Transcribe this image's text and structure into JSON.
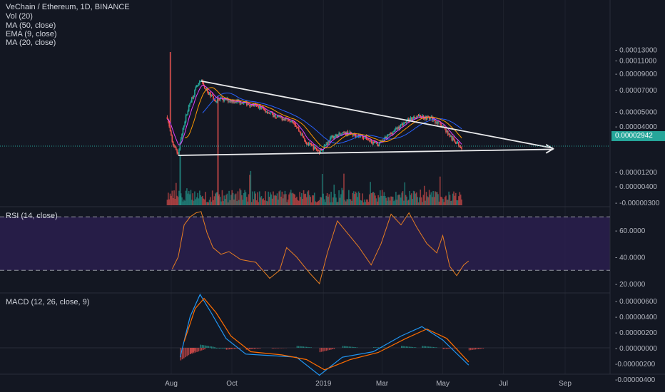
{
  "legend": {
    "title": "VeChain / Ethereum, 1D, BINANCE",
    "vol": "Vol (20)",
    "ma50": "MA (50, close)",
    "ema9": "EMA (9, close)",
    "ma20": "MA (20, close)",
    "rsi": "RSI (14, close)",
    "macd": "MACD (12, 26, close, 9)"
  },
  "colors": {
    "background": "#131722",
    "up": "#26a69a",
    "down": "#ef5350",
    "trendline": "#e9eaec",
    "ma50": "#2962ff",
    "ema9": "#e040fb",
    "ma20": "#ff9800",
    "rsi_line": "#e67e22",
    "rsi_band": "#2a1f4d",
    "macd_line": "#2196f3",
    "signal_line": "#ff6d00"
  },
  "last_price": "0.00002942",
  "chart_data": [
    {
      "type": "candlestick",
      "title": "VeChain / Ethereum, 1D, BINANCE",
      "x_ticks": [
        "Aug",
        "Oct",
        "2019",
        "Mar",
        "May",
        "Jul",
        "Sep"
      ],
      "y_ticks": [
        "0.00013000",
        "0.00011000",
        "0.00009000",
        "0.00007000",
        "0.00005000",
        "0.00004000",
        "0.00002942"
      ],
      "y_scale": "log",
      "last_price": 2.942e-05,
      "close_series_approx": [
        {
          "x": "2018-07-28",
          "y": 4.6e-05
        },
        {
          "x": "2018-08-02",
          "y": 3.1e-05
        },
        {
          "x": "2018-08-08",
          "y": 2.6e-05
        },
        {
          "x": "2018-08-14",
          "y": 4.2e-05
        },
        {
          "x": "2018-08-20",
          "y": 5.8e-05
        },
        {
          "x": "2018-08-26",
          "y": 7.2e-05
        },
        {
          "x": "2018-08-31",
          "y": 8e-05
        },
        {
          "x": "2018-09-06",
          "y": 6.8e-05
        },
        {
          "x": "2018-09-14",
          "y": 6e-05
        },
        {
          "x": "2018-09-25",
          "y": 6e-05
        },
        {
          "x": "2018-10-10",
          "y": 5.8e-05
        },
        {
          "x": "2018-10-28",
          "y": 5.4e-05
        },
        {
          "x": "2018-11-15",
          "y": 4.6e-05
        },
        {
          "x": "2018-12-01",
          "y": 4.4e-05
        },
        {
          "x": "2018-12-15",
          "y": 3.1e-05
        },
        {
          "x": "2018-12-28",
          "y": 2.7e-05
        },
        {
          "x": "2019-01-10",
          "y": 3.4e-05
        },
        {
          "x": "2019-01-25",
          "y": 3.6e-05
        },
        {
          "x": "2019-02-10",
          "y": 3.4e-05
        },
        {
          "x": "2019-02-25",
          "y": 3e-05
        },
        {
          "x": "2019-03-10",
          "y": 3.6e-05
        },
        {
          "x": "2019-03-25",
          "y": 4.3e-05
        },
        {
          "x": "2019-04-05",
          "y": 4.7e-05
        },
        {
          "x": "2019-04-20",
          "y": 4.5e-05
        },
        {
          "x": "2019-05-01",
          "y": 4e-05
        },
        {
          "x": "2019-05-10",
          "y": 3.3e-05
        },
        {
          "x": "2019-05-20",
          "y": 2.9e-05
        }
      ],
      "spike_high": {
        "x": "2018-07-31",
        "y": 0.000125
      },
      "trendlines": [
        {
          "from": {
            "x": "2018-08-31",
            "y": 8e-05
          },
          "to": {
            "x": "2019-08-20",
            "y": 2.85e-05
          }
        },
        {
          "from": {
            "x": "2018-08-08",
            "y": 2.55e-05
          },
          "to": {
            "x": "2019-08-20",
            "y": 2.8e-05
          }
        }
      ],
      "series": [
        {
          "name": "MA (50, close)"
        },
        {
          "name": "EMA (9, close)"
        },
        {
          "name": "MA (20, close)"
        }
      ]
    },
    {
      "type": "bar",
      "title": "Vol (20)",
      "y_ticks": [
        "0.00001200",
        "0.00000400",
        "-0.00000300"
      ],
      "peak_bar": {
        "x": "2018-08-10",
        "value": 1.55e-05
      }
    },
    {
      "type": "line",
      "title": "RSI (14, close)",
      "y_ticks": [
        "60.0000",
        "40.0000",
        "20.0000"
      ],
      "bands": [
        70,
        30
      ],
      "points": [
        {
          "x": "2018-08-02",
          "y": 31
        },
        {
          "x": "2018-08-08",
          "y": 40
        },
        {
          "x": "2018-08-14",
          "y": 64
        },
        {
          "x": "2018-08-20",
          "y": 70
        },
        {
          "x": "2018-08-26",
          "y": 73
        },
        {
          "x": "2018-08-31",
          "y": 74
        },
        {
          "x": "2018-09-06",
          "y": 58
        },
        {
          "x": "2018-09-12",
          "y": 47
        },
        {
          "x": "2018-09-20",
          "y": 42
        },
        {
          "x": "2018-09-28",
          "y": 44
        },
        {
          "x": "2018-10-10",
          "y": 38
        },
        {
          "x": "2018-10-25",
          "y": 36
        },
        {
          "x": "2018-11-08",
          "y": 24
        },
        {
          "x": "2018-11-18",
          "y": 30
        },
        {
          "x": "2018-11-25",
          "y": 47
        },
        {
          "x": "2018-12-05",
          "y": 40
        },
        {
          "x": "2018-12-18",
          "y": 28
        },
        {
          "x": "2018-12-28",
          "y": 20
        },
        {
          "x": "2019-01-05",
          "y": 43
        },
        {
          "x": "2019-01-15",
          "y": 67
        },
        {
          "x": "2019-01-25",
          "y": 58
        },
        {
          "x": "2019-02-05",
          "y": 48
        },
        {
          "x": "2019-02-18",
          "y": 34
        },
        {
          "x": "2019-02-28",
          "y": 50
        },
        {
          "x": "2019-03-10",
          "y": 72
        },
        {
          "x": "2019-03-20",
          "y": 64
        },
        {
          "x": "2019-03-28",
          "y": 73
        },
        {
          "x": "2019-04-05",
          "y": 62
        },
        {
          "x": "2019-04-15",
          "y": 50
        },
        {
          "x": "2019-04-25",
          "y": 43
        },
        {
          "x": "2019-05-01",
          "y": 56
        },
        {
          "x": "2019-05-08",
          "y": 33
        },
        {
          "x": "2019-05-15",
          "y": 26
        },
        {
          "x": "2019-05-22",
          "y": 34
        },
        {
          "x": "2019-05-27",
          "y": 37
        }
      ]
    },
    {
      "type": "line",
      "title": "MACD (12, 26, close, 9)",
      "y_ticks": [
        "0.00000600",
        "0.00000400",
        "0.00000200",
        "0.00000000",
        "-0.00000200",
        "-0.00000400"
      ],
      "series": [
        {
          "points": [
            {
              "x": "2018-08-10",
              "y": -1.2e-06
            },
            {
              "x": "2018-08-20",
              "y": 4e-06
            },
            {
              "x": "2018-08-30",
              "y": 6.8e-06
            },
            {
              "x": "2018-09-10",
              "y": 4.5e-06
            },
            {
              "x": "2018-09-25",
              "y": 1.2e-06
            },
            {
              "x": "2018-10-15",
              "y": -8e-07
            },
            {
              "x": "2018-11-10",
              "y": -1e-06
            },
            {
              "x": "2018-12-05",
              "y": -1.2e-06
            },
            {
              "x": "2018-12-28",
              "y": -3.5e-06
            },
            {
              "x": "2019-01-20",
              "y": -1.2e-06
            },
            {
              "x": "2019-02-20",
              "y": -5e-07
            },
            {
              "x": "2019-03-20",
              "y": 1.5e-06
            },
            {
              "x": "2019-04-10",
              "y": 2.7e-06
            },
            {
              "x": "2019-05-01",
              "y": 1e-06
            },
            {
              "x": "2019-05-27",
              "y": -2.2e-06
            }
          ]
        },
        {
          "points": [
            {
              "x": "2018-08-14",
              "y": 8e-07
            },
            {
              "x": "2018-08-25",
              "y": 5e-06
            },
            {
              "x": "2018-09-03",
              "y": 6.3e-06
            },
            {
              "x": "2018-09-15",
              "y": 4.5e-06
            },
            {
              "x": "2018-09-30",
              "y": 1.5e-06
            },
            {
              "x": "2018-10-20",
              "y": -5e-07
            },
            {
              "x": "2018-11-20",
              "y": -9e-07
            },
            {
              "x": "2018-12-15",
              "y": -1.5e-06
            },
            {
              "x": "2019-01-02",
              "y": -2.8e-06
            },
            {
              "x": "2019-01-28",
              "y": -1.5e-06
            },
            {
              "x": "2019-02-25",
              "y": -6e-07
            },
            {
              "x": "2019-03-25",
              "y": 1.2e-06
            },
            {
              "x": "2019-04-15",
              "y": 2.4e-06
            },
            {
              "x": "2019-05-05",
              "y": 1.2e-06
            },
            {
              "x": "2019-05-27",
              "y": -1.8e-06
            }
          ]
        }
      ]
    }
  ]
}
